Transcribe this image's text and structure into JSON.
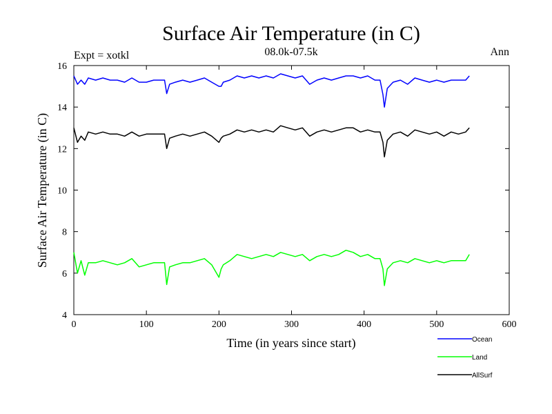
{
  "chart_data": {
    "type": "line",
    "title": "Surface Air Temperature (in C)",
    "subtitle_left": "Expt = xotkl",
    "subtitle_center": "08.0k-07.5k",
    "subtitle_right": "Ann",
    "xlabel": "Time (in years since start)",
    "ylabel": "Surface Air Temperature (in C)",
    "xlim": [
      0,
      600
    ],
    "ylim": [
      4,
      16
    ],
    "xticks": [
      0,
      100,
      200,
      300,
      400,
      500,
      600
    ],
    "yticks": [
      4,
      6,
      8,
      10,
      12,
      14,
      16
    ],
    "grid": false,
    "legend_position": "bottom-right",
    "x": [
      0,
      5,
      10,
      15,
      20,
      30,
      40,
      50,
      60,
      70,
      80,
      90,
      100,
      110,
      120,
      125,
      128,
      132,
      140,
      150,
      160,
      170,
      180,
      190,
      200,
      203,
      206,
      215,
      225,
      235,
      245,
      255,
      265,
      275,
      285,
      295,
      305,
      315,
      325,
      335,
      345,
      355,
      365,
      375,
      385,
      395,
      405,
      415,
      422,
      426,
      428,
      432,
      440,
      450,
      460,
      470,
      480,
      490,
      500,
      510,
      520,
      530,
      540,
      545
    ],
    "series": [
      {
        "name": "Ocean",
        "color": "#0000ff",
        "values": [
          15.5,
          15.1,
          15.3,
          15.1,
          15.4,
          15.3,
          15.4,
          15.3,
          15.3,
          15.2,
          15.4,
          15.2,
          15.2,
          15.3,
          15.3,
          15.3,
          14.65,
          15.1,
          15.2,
          15.3,
          15.2,
          15.3,
          15.4,
          15.2,
          15.0,
          15.0,
          15.2,
          15.3,
          15.5,
          15.4,
          15.5,
          15.4,
          15.5,
          15.4,
          15.6,
          15.5,
          15.4,
          15.5,
          15.1,
          15.3,
          15.4,
          15.3,
          15.4,
          15.5,
          15.5,
          15.4,
          15.5,
          15.3,
          15.3,
          14.6,
          14.0,
          14.9,
          15.2,
          15.3,
          15.1,
          15.4,
          15.3,
          15.2,
          15.3,
          15.2,
          15.3,
          15.3,
          15.3,
          15.5
        ]
      },
      {
        "name": "Land",
        "color": "#00ff00",
        "values": [
          7.0,
          6.0,
          6.6,
          5.9,
          6.5,
          6.5,
          6.6,
          6.5,
          6.4,
          6.5,
          6.7,
          6.3,
          6.4,
          6.5,
          6.5,
          6.5,
          5.45,
          6.3,
          6.4,
          6.5,
          6.5,
          6.6,
          6.7,
          6.4,
          5.8,
          6.2,
          6.4,
          6.6,
          6.9,
          6.8,
          6.7,
          6.8,
          6.9,
          6.8,
          7.0,
          6.9,
          6.8,
          6.9,
          6.6,
          6.8,
          6.9,
          6.8,
          6.9,
          7.1,
          7.0,
          6.8,
          6.9,
          6.7,
          6.7,
          6.2,
          5.4,
          6.2,
          6.5,
          6.6,
          6.5,
          6.7,
          6.6,
          6.5,
          6.6,
          6.5,
          6.6,
          6.6,
          6.6,
          6.9
        ]
      },
      {
        "name": "AllSurf",
        "color": "#000000",
        "values": [
          13.0,
          12.3,
          12.6,
          12.4,
          12.8,
          12.7,
          12.8,
          12.7,
          12.7,
          12.6,
          12.8,
          12.6,
          12.7,
          12.7,
          12.7,
          12.7,
          12.0,
          12.5,
          12.6,
          12.7,
          12.6,
          12.7,
          12.8,
          12.6,
          12.3,
          12.5,
          12.6,
          12.7,
          12.9,
          12.8,
          12.9,
          12.8,
          12.9,
          12.8,
          13.1,
          13.0,
          12.9,
          13.0,
          12.6,
          12.8,
          12.9,
          12.8,
          12.9,
          13.0,
          13.0,
          12.8,
          12.9,
          12.8,
          12.8,
          12.3,
          11.6,
          12.4,
          12.7,
          12.8,
          12.6,
          12.9,
          12.8,
          12.7,
          12.8,
          12.6,
          12.8,
          12.7,
          12.8,
          13.0
        ]
      }
    ]
  }
}
